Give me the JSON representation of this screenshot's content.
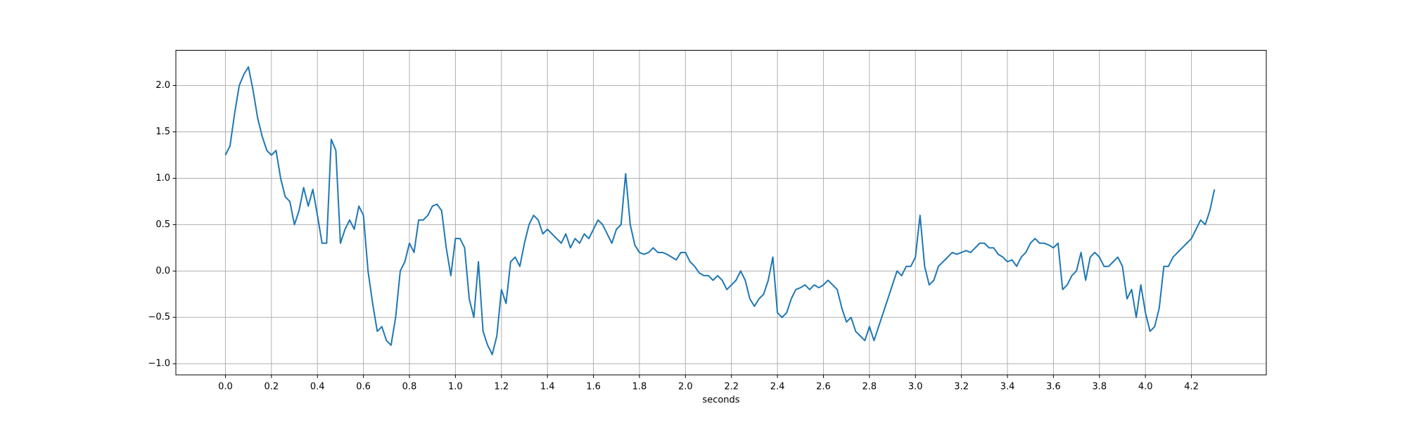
{
  "chart_data": {
    "type": "line",
    "xlabel": "seconds",
    "x": [
      0.0,
      0.02,
      0.04,
      0.06,
      0.08,
      0.1,
      0.12,
      0.14,
      0.16,
      0.18,
      0.2,
      0.22,
      0.24,
      0.26,
      0.28,
      0.3,
      0.32,
      0.34,
      0.36,
      0.38,
      0.4,
      0.42,
      0.44,
      0.46,
      0.48,
      0.5,
      0.52,
      0.54,
      0.56,
      0.58,
      0.6,
      0.62,
      0.64,
      0.66,
      0.68,
      0.7,
      0.72,
      0.74,
      0.76,
      0.78,
      0.8,
      0.82,
      0.84,
      0.86,
      0.88,
      0.9,
      0.92,
      0.94,
      0.96,
      0.98,
      1.0,
      1.02,
      1.04,
      1.06,
      1.08,
      1.1,
      1.12,
      1.14,
      1.16,
      1.18,
      1.2,
      1.22,
      1.24,
      1.26,
      1.28,
      1.3,
      1.32,
      1.34,
      1.36,
      1.38,
      1.4,
      1.42,
      1.44,
      1.46,
      1.48,
      1.5,
      1.52,
      1.54,
      1.56,
      1.58,
      1.6,
      1.62,
      1.64,
      1.66,
      1.68,
      1.7,
      1.72,
      1.74,
      1.76,
      1.78,
      1.8,
      1.82,
      1.84,
      1.86,
      1.88,
      1.9,
      1.92,
      1.94,
      1.96,
      1.98,
      2.0,
      2.02,
      2.04,
      2.06,
      2.08,
      2.1,
      2.12,
      2.14,
      2.16,
      2.18,
      2.2,
      2.22,
      2.24,
      2.26,
      2.28,
      2.3,
      2.32,
      2.34,
      2.36,
      2.38,
      2.4,
      2.42,
      2.44,
      2.46,
      2.48,
      2.5,
      2.52,
      2.54,
      2.56,
      2.58,
      2.6,
      2.62,
      2.64,
      2.66,
      2.68,
      2.7,
      2.72,
      2.74,
      2.76,
      2.78,
      2.8,
      2.82,
      2.84,
      2.86,
      2.88,
      2.9,
      2.92,
      2.94,
      2.96,
      2.98,
      3.0,
      3.02,
      3.04,
      3.06,
      3.08,
      3.1,
      3.12,
      3.14,
      3.16,
      3.18,
      3.2,
      3.22,
      3.24,
      3.26,
      3.28,
      3.3,
      3.32,
      3.34,
      3.36,
      3.38,
      3.4,
      3.42,
      3.44,
      3.46,
      3.48,
      3.5,
      3.52,
      3.54,
      3.56,
      3.58,
      3.6,
      3.62,
      3.64,
      3.66,
      3.68,
      3.7,
      3.72,
      3.74,
      3.76,
      3.78,
      3.8,
      3.82,
      3.84,
      3.86,
      3.88,
      3.9,
      3.92,
      3.94,
      3.96,
      3.98,
      4.0,
      4.02,
      4.04,
      4.06,
      4.08,
      4.1,
      4.12,
      4.14,
      4.16,
      4.18,
      4.2,
      4.22,
      4.24,
      4.26,
      4.28,
      4.3
    ],
    "series": [
      {
        "color": "#1f77b4",
        "values": [
          1.25,
          1.35,
          1.7,
          2.0,
          2.12,
          2.2,
          1.95,
          1.65,
          1.45,
          1.3,
          1.25,
          1.3,
          1.0,
          0.8,
          0.75,
          0.5,
          0.65,
          0.9,
          0.7,
          0.88,
          0.6,
          0.3,
          0.3,
          1.42,
          1.3,
          0.3,
          0.45,
          0.55,
          0.45,
          0.7,
          0.6,
          0.0,
          -0.35,
          -0.65,
          -0.6,
          -0.75,
          -0.8,
          -0.5,
          0.0,
          0.1,
          0.3,
          0.2,
          0.55,
          0.55,
          0.6,
          0.7,
          0.72,
          0.65,
          0.25,
          -0.05,
          0.35,
          0.35,
          0.25,
          -0.3,
          -0.5,
          0.1,
          -0.65,
          -0.8,
          -0.9,
          -0.7,
          -0.2,
          -0.35,
          0.1,
          0.15,
          0.05,
          0.3,
          0.5,
          0.6,
          0.55,
          0.4,
          0.45,
          0.4,
          0.35,
          0.3,
          0.4,
          0.25,
          0.35,
          0.3,
          0.4,
          0.35,
          0.45,
          0.55,
          0.5,
          0.4,
          0.3,
          0.45,
          0.5,
          1.05,
          0.5,
          0.28,
          0.2,
          0.18,
          0.2,
          0.25,
          0.2,
          0.2,
          0.18,
          0.15,
          0.12,
          0.2,
          0.2,
          0.1,
          0.05,
          -0.02,
          -0.05,
          -0.05,
          -0.1,
          -0.05,
          -0.1,
          -0.2,
          -0.15,
          -0.1,
          0.0,
          -0.1,
          -0.3,
          -0.38,
          -0.3,
          -0.25,
          -0.1,
          0.15,
          -0.45,
          -0.5,
          -0.45,
          -0.3,
          -0.2,
          -0.18,
          -0.15,
          -0.2,
          -0.15,
          -0.18,
          -0.15,
          -0.1,
          -0.15,
          -0.2,
          -0.4,
          -0.55,
          -0.5,
          -0.65,
          -0.7,
          -0.75,
          -0.6,
          -0.75,
          -0.6,
          -0.45,
          -0.3,
          -0.15,
          0.0,
          -0.05,
          0.05,
          0.05,
          0.15,
          0.6,
          0.05,
          -0.15,
          -0.1,
          0.05,
          0.1,
          0.15,
          0.2,
          0.18,
          0.2,
          0.22,
          0.2,
          0.25,
          0.3,
          0.3,
          0.25,
          0.25,
          0.18,
          0.15,
          0.1,
          0.12,
          0.05,
          0.15,
          0.2,
          0.3,
          0.35,
          0.3,
          0.3,
          0.28,
          0.25,
          0.3,
          -0.2,
          -0.15,
          -0.05,
          0.0,
          0.2,
          -0.1,
          0.15,
          0.2,
          0.15,
          0.05,
          0.05,
          0.1,
          0.15,
          0.05,
          -0.3,
          -0.2,
          -0.5,
          -0.15,
          -0.45,
          -0.65,
          -0.6,
          -0.4,
          0.05,
          0.05,
          0.15,
          0.2,
          0.25,
          0.3,
          0.35,
          0.45,
          0.55,
          0.5,
          0.65,
          0.88
        ]
      }
    ],
    "xlim": [
      -0.2155,
      4.5255
    ],
    "ylim": [
      -1.12,
      2.38
    ],
    "xticks": [
      {
        "value": 0,
        "label": "0.0"
      },
      0.2,
      0.4,
      0.6,
      0.8,
      {
        "value": 1,
        "label": "1.0"
      },
      1.2,
      1.4,
      1.6,
      1.8,
      {
        "value": 2,
        "label": "2.0"
      },
      2.2,
      2.4,
      2.6,
      2.8,
      {
        "value": 3,
        "label": "3.0"
      },
      3.2,
      3.4,
      3.6,
      3.8,
      {
        "value": 4,
        "label": "4.0"
      },
      4.2
    ],
    "yticks": [
      {
        "value": -1,
        "label": "−1.0"
      },
      {
        "value": -0.5,
        "label": "−0.5"
      },
      {
        "value": 0,
        "label": "0.0"
      },
      0.5,
      {
        "value": 1,
        "label": "1.0"
      },
      1.5,
      {
        "value": 2,
        "label": "2.0"
      }
    ],
    "grid": true
  }
}
